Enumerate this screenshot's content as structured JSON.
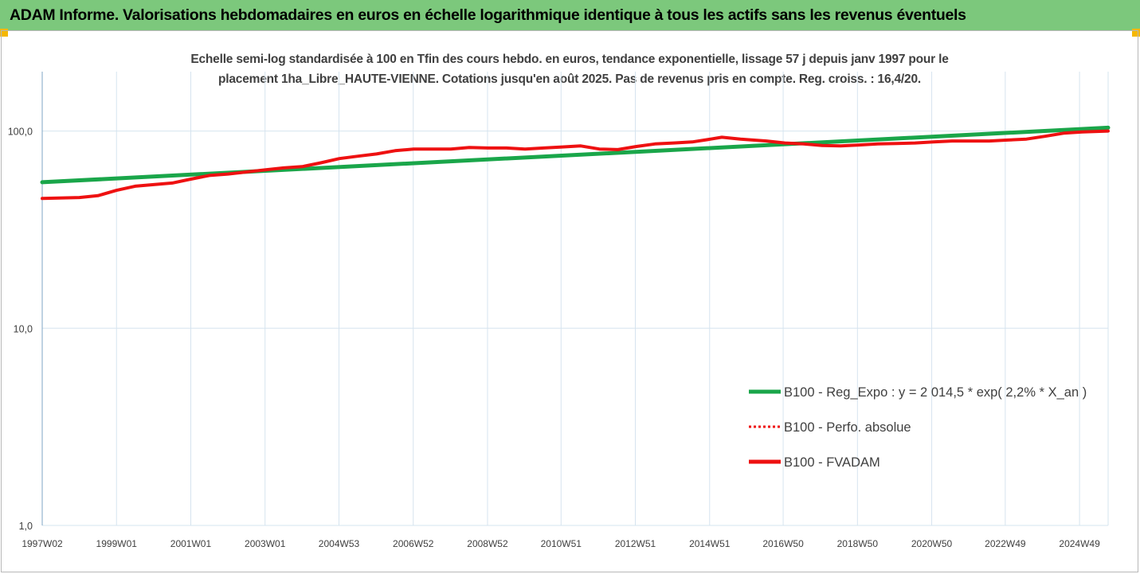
{
  "banner": {
    "title": "ADAM Informe. Valorisations hebdomadaires en euros en échelle logarithmique identique à tous les actifs sans les revenus éventuels"
  },
  "colors": {
    "banner_bg": "#7cc87c",
    "corner_accent": "#f5b800",
    "regression_line": "#1aa64a",
    "fvadam_line": "#ee1111",
    "perfo_line": "#ee1111",
    "grid": "#d6e4ef"
  },
  "chart_data": {
    "type": "line",
    "subtitle_line1": "Echelle semi-log standardisée à 100 en Tfin des cours hebdo. en euros, tendance exponentielle, lissage 57 j depuis janv 1997 pour le",
    "subtitle_line2": "placement 1ha_Libre_HAUTE-VIENNE. Cotations jusqu'en août 2025. Pas de revenus pris en compte. Reg. croiss. : 16,4/20.",
    "yscale": "log",
    "ylim": [
      1,
      200
    ],
    "ytick_values": [
      1,
      10,
      100
    ],
    "ytick_labels": [
      "1,0",
      "10,0",
      "100,0"
    ],
    "xlim": [
      1997.0,
      2025.7
    ],
    "xtick_positions": [
      1997.0,
      1999.0,
      2001.0,
      2003.0,
      2004.99,
      2006.99,
      2008.99,
      2010.97,
      2012.97,
      2014.97,
      2016.95,
      2018.95,
      2020.95,
      2022.93,
      2024.93
    ],
    "xtick_labels": [
      "1997W02",
      "1999W01",
      "2001W01",
      "2003W01",
      "2004W53",
      "2006W52",
      "2008W52",
      "2010W51",
      "2012W51",
      "2014W51",
      "2016W50",
      "2018W50",
      "2020W50",
      "2022W49",
      "2024W49"
    ],
    "grid": true,
    "legend_position": "bottom-right",
    "series": [
      {
        "name": "B100 - Reg_Expo : y = 2 014,5 * exp( 2,2% *  X_an )",
        "style": "solid-green",
        "points": [
          [
            1997.0,
            55
          ],
          [
            2025.7,
            104
          ]
        ]
      },
      {
        "name": "B100 - Perfo. absolue",
        "style": "dotted-red",
        "points": []
      },
      {
        "name": "B100 - FVADAM",
        "style": "solid-red",
        "points": [
          [
            1997.0,
            45.5
          ],
          [
            1998.0,
            46
          ],
          [
            1998.5,
            47
          ],
          [
            1999.0,
            50
          ],
          [
            1999.5,
            52.5
          ],
          [
            2000.0,
            53.5
          ],
          [
            2000.5,
            54.5
          ],
          [
            2001.0,
            57
          ],
          [
            2001.5,
            59.5
          ],
          [
            2002.0,
            60.5
          ],
          [
            2002.5,
            62
          ],
          [
            2003.0,
            63.5
          ],
          [
            2003.5,
            65
          ],
          [
            2004.0,
            66
          ],
          [
            2004.5,
            69
          ],
          [
            2005.0,
            72.5
          ],
          [
            2005.5,
            74.5
          ],
          [
            2006.0,
            76.5
          ],
          [
            2006.5,
            79.5
          ],
          [
            2007.0,
            81
          ],
          [
            2007.5,
            81
          ],
          [
            2008.0,
            81
          ],
          [
            2008.5,
            82.5
          ],
          [
            2009.0,
            82
          ],
          [
            2009.5,
            82
          ],
          [
            2010.0,
            81
          ],
          [
            2010.5,
            82
          ],
          [
            2011.0,
            83
          ],
          [
            2011.5,
            84
          ],
          [
            2012.0,
            81
          ],
          [
            2012.5,
            80.5
          ],
          [
            2013.0,
            83.5
          ],
          [
            2013.5,
            86
          ],
          [
            2014.0,
            87
          ],
          [
            2014.5,
            88
          ],
          [
            2015.0,
            91
          ],
          [
            2015.3,
            93
          ],
          [
            2015.8,
            91
          ],
          [
            2016.5,
            89
          ],
          [
            2017.0,
            87
          ],
          [
            2017.5,
            86
          ],
          [
            2018.0,
            84.5
          ],
          [
            2018.5,
            84
          ],
          [
            2019.0,
            85
          ],
          [
            2019.5,
            86
          ],
          [
            2020.0,
            86.5
          ],
          [
            2020.5,
            87
          ],
          [
            2021.0,
            88
          ],
          [
            2021.5,
            89
          ],
          [
            2022.0,
            89
          ],
          [
            2022.5,
            89
          ],
          [
            2023.0,
            90
          ],
          [
            2023.5,
            91
          ],
          [
            2024.0,
            94
          ],
          [
            2024.5,
            97.5
          ],
          [
            2025.0,
            99
          ],
          [
            2025.7,
            100
          ]
        ]
      }
    ]
  }
}
